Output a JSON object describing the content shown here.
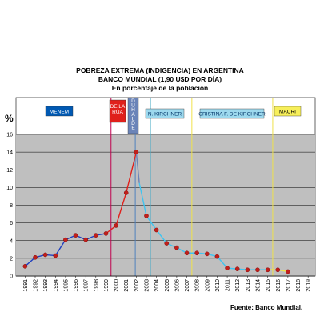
{
  "chart_data": {
    "type": "line",
    "title": "POBREZA EXTREMA (INDIGENCIA) EN ARGENTINA",
    "subtitle": "BANCO MUNDIAL (1,90 U$D POR DÍA)",
    "subtitle2": "En porcentaje de la población",
    "ylabel": "%",
    "source": "Fuente: Banco Mundial.",
    "ylim": [
      0,
      16
    ],
    "yticks": [
      0,
      2,
      4,
      6,
      8,
      10,
      12,
      14,
      16
    ],
    "x_categories": [
      "1991",
      "1992",
      "1993",
      "1994",
      "1995",
      "1996",
      "1997",
      "1998",
      "1999",
      "2000",
      "2001",
      "2002",
      "2003",
      "2004",
      "2005",
      "2006",
      "2007",
      "2008",
      "2009",
      "2010",
      "2011",
      "2012",
      "2013",
      "2014",
      "2015",
      "2016",
      "2017",
      "2018",
      "2019"
    ],
    "grey_band_from": 16,
    "periods": [
      {
        "label": "MENEM",
        "start": 1989,
        "end": 1999.5,
        "box_color": "#0059b3",
        "text_color": "#ffffff",
        "line_color": "#7030a0"
      },
      {
        "label": "DE LA RÚA",
        "start": 1999.5,
        "end": 2001.9,
        "box_color": "#e0201b",
        "text_color": "#ffffff",
        "line_color": "#c0004f"
      },
      {
        "label": "DUHALDE",
        "start": 2001.9,
        "end": 2003.4,
        "box_color": "#6b84b8",
        "text_color": "#ffffff",
        "line_color": "#4f81bd"
      },
      {
        "label": "N. KIRCHNER",
        "start": 2003.4,
        "end": 2007.5,
        "box_color": "#9dd9ee",
        "text_color": "#003366",
        "line_color": "#4bacc6"
      },
      {
        "label": "CRISTINA F. DE KIRCHNER",
        "start": 2007.5,
        "end": 2015.5,
        "box_color": "#9dd9ee",
        "text_color": "#003366",
        "line_color": "#f0e24a"
      },
      {
        "label": "MACRI",
        "start": 2015.5,
        "end": 2019.5,
        "box_color": "#f7ef5a",
        "text_color": "#000000",
        "line_color": "#f0e24a"
      }
    ],
    "series": [
      {
        "segment": "menem",
        "color": "#1f3fbf",
        "points": [
          [
            1991,
            1.1
          ],
          [
            1992,
            2.1
          ],
          [
            1993,
            2.4
          ],
          [
            1994,
            2.3
          ],
          [
            1995,
            4.1
          ],
          [
            1996,
            4.6
          ],
          [
            1997,
            4.1
          ],
          [
            1998,
            4.6
          ],
          [
            1999,
            4.8
          ]
        ]
      },
      {
        "segment": "de-la-rua",
        "color": "#e0201b",
        "points": [
          [
            1999,
            4.8
          ],
          [
            2000,
            5.7
          ],
          [
            2001,
            9.4
          ],
          [
            2002,
            14.0
          ]
        ]
      },
      {
        "segment": "duhalde",
        "color": "#6b84b8",
        "points": [
          [
            2002,
            14.0
          ],
          [
            2002.3,
            10.5
          ]
        ]
      },
      {
        "segment": "n-kirchner",
        "color": "#3fc4f0",
        "points": [
          [
            2002.3,
            10.5
          ],
          [
            2003,
            6.8
          ],
          [
            2004,
            5.2
          ],
          [
            2005,
            3.7
          ],
          [
            2006,
            3.2
          ],
          [
            2007,
            2.6
          ]
        ]
      },
      {
        "segment": "cfk",
        "color": "#3fc4f0",
        "points": [
          [
            2007,
            2.6
          ],
          [
            2008,
            2.6
          ],
          [
            2009,
            2.5
          ],
          [
            2010,
            2.2
          ],
          [
            2011,
            0.9
          ],
          [
            2012,
            0.8
          ],
          [
            2013,
            0.7
          ],
          [
            2014,
            0.7
          ],
          [
            2015,
            0.7
          ]
        ]
      },
      {
        "segment": "macri",
        "color": "#f0e24a",
        "points": [
          [
            2015,
            0.7
          ],
          [
            2016,
            0.7
          ],
          [
            2017,
            0.5
          ]
        ]
      }
    ],
    "markers": [
      [
        1991,
        1.1
      ],
      [
        1992,
        2.1
      ],
      [
        1993,
        2.4
      ],
      [
        1994,
        2.3
      ],
      [
        1995,
        4.1
      ],
      [
        1996,
        4.6
      ],
      [
        1997,
        4.1
      ],
      [
        1998,
        4.6
      ],
      [
        1999,
        4.8
      ],
      [
        2000,
        5.7
      ],
      [
        2001,
        9.4
      ],
      [
        2002,
        14.0
      ],
      [
        2003,
        6.8
      ],
      [
        2004,
        5.2
      ],
      [
        2005,
        3.7
      ],
      [
        2006,
        3.2
      ],
      [
        2007,
        2.6
      ],
      [
        2008,
        2.6
      ],
      [
        2009,
        2.5
      ],
      [
        2010,
        2.2
      ],
      [
        2011,
        0.9
      ],
      [
        2012,
        0.8
      ],
      [
        2013,
        0.7
      ],
      [
        2014,
        0.7
      ],
      [
        2015,
        0.7
      ],
      [
        2016,
        0.7
      ],
      [
        2017,
        0.5
      ]
    ],
    "marker_color": "#c0201b"
  }
}
